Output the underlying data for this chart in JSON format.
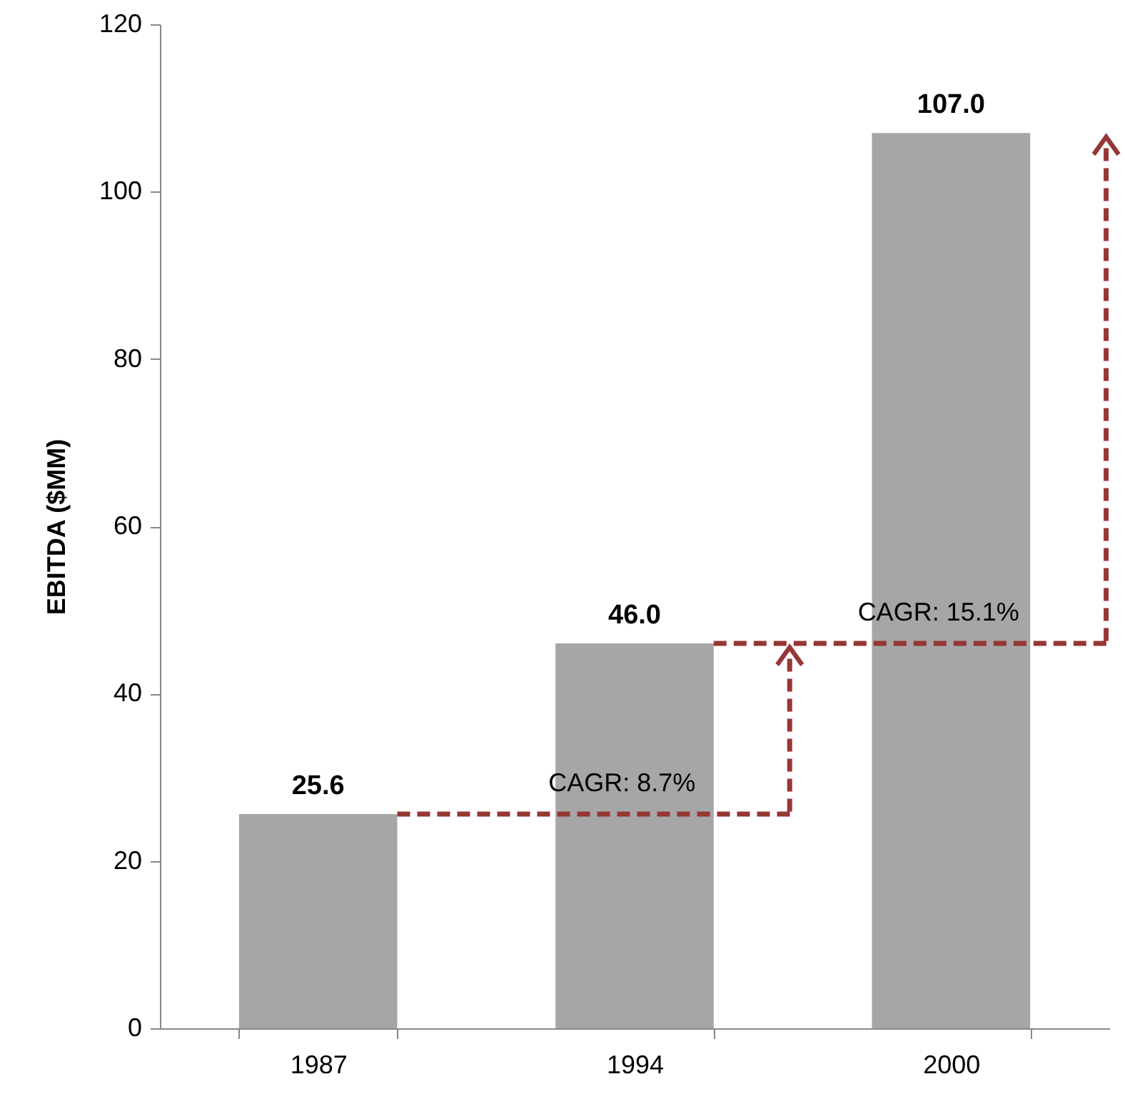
{
  "chart_data": {
    "type": "bar",
    "ylabel": "EBITDA ($MM)",
    "categories": [
      "1987",
      "1994",
      "2000"
    ],
    "values": [
      25.6,
      46.0,
      107.0
    ],
    "value_labels": [
      "25.6",
      "46.0",
      "107.0"
    ],
    "color": "#a6a6a6",
    "ylim": [
      0,
      120
    ],
    "yticks": [
      0,
      20,
      40,
      60,
      80,
      100,
      120
    ],
    "annotations": [
      "CAGR: 8.7%",
      "CAGR: 15.1%"
    ],
    "grid": false
  }
}
